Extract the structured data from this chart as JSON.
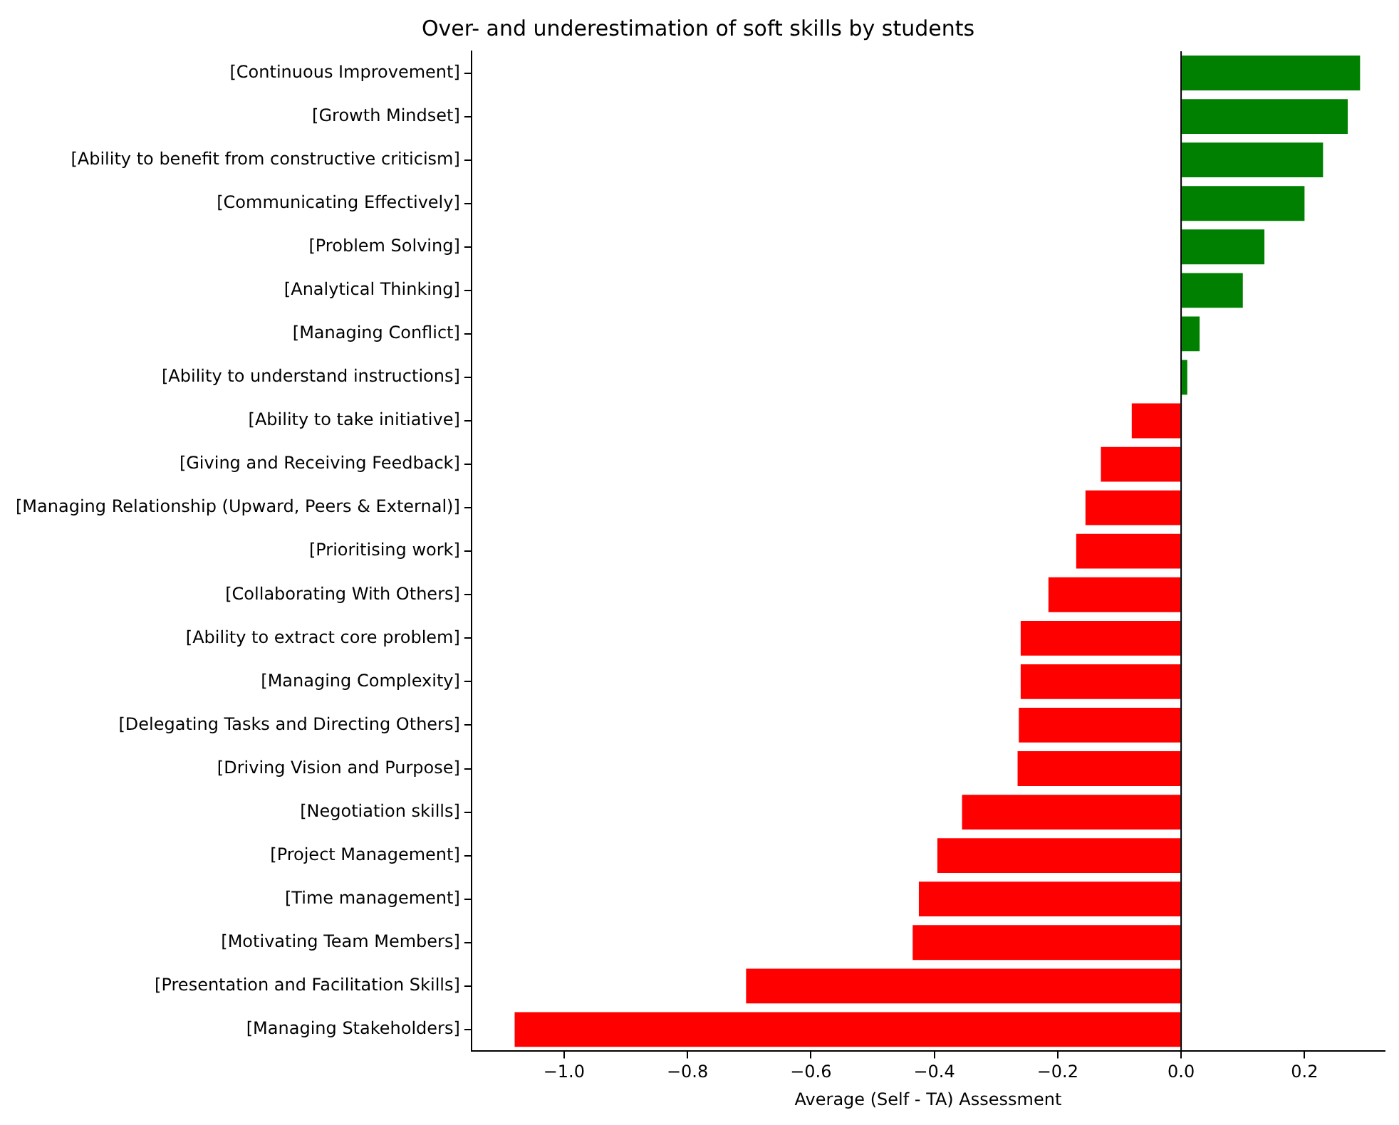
{
  "chart_data": {
    "type": "bar",
    "orientation": "horizontal",
    "title": "Over- and underestimation of soft skills by students",
    "xlabel": "Average (Self - TA) Assessment",
    "categories": [
      "[Continuous Improvement]",
      "[Growth Mindset]",
      "[Ability to benefit from constructive criticism]",
      "[Communicating Effectively]",
      "[Problem Solving]",
      "[Analytical Thinking]",
      "[Managing Conflict]",
      "[Ability to understand instructions]",
      "[Ability to take initiative]",
      "[Giving and Receiving Feedback]",
      "[Managing Relationship (Upward, Peers & External)]",
      "[Prioritising work]",
      "[Collaborating With Others]",
      "[Ability to extract core problem]",
      "[Managing Complexity]",
      "[Delegating Tasks and Directing Others]",
      "[Driving Vision and Purpose]",
      "[Negotiation skills]",
      "[Project Management]",
      "[Time management]",
      "[Motivating Team Members]",
      "[Presentation and Facilitation Skills]",
      "[Managing Stakeholders]"
    ],
    "values": [
      0.29,
      0.27,
      0.23,
      0.2,
      0.135,
      0.1,
      0.03,
      0.01,
      -0.08,
      -0.13,
      -0.155,
      -0.17,
      -0.215,
      -0.26,
      -0.26,
      -0.263,
      -0.265,
      -0.355,
      -0.395,
      -0.425,
      -0.435,
      -0.705,
      -1.08
    ],
    "colors": [
      "#008000",
      "#008000",
      "#008000",
      "#008000",
      "#008000",
      "#008000",
      "#008000",
      "#008000",
      "#ff0000",
      "#ff0000",
      "#ff0000",
      "#ff0000",
      "#ff0000",
      "#ff0000",
      "#ff0000",
      "#ff0000",
      "#ff0000",
      "#ff0000",
      "#ff0000",
      "#ff0000",
      "#ff0000",
      "#ff0000",
      "#ff0000"
    ],
    "xlim": [
      -1.15,
      0.33
    ],
    "xticks": [
      {
        "value": -1.0,
        "label": "−1.0"
      },
      {
        "value": -0.8,
        "label": "−0.8"
      },
      {
        "value": -0.6,
        "label": "−0.6"
      },
      {
        "value": -0.4,
        "label": "−0.4"
      },
      {
        "value": -0.2,
        "label": "−0.2"
      },
      {
        "value": 0,
        "label": "0.0"
      },
      {
        "value": 0.2,
        "label": "0.2"
      }
    ],
    "ref_lines": [
      {
        "axis": "x",
        "value": 0,
        "color": "#000000"
      }
    ],
    "grid": false,
    "legend": false
  }
}
